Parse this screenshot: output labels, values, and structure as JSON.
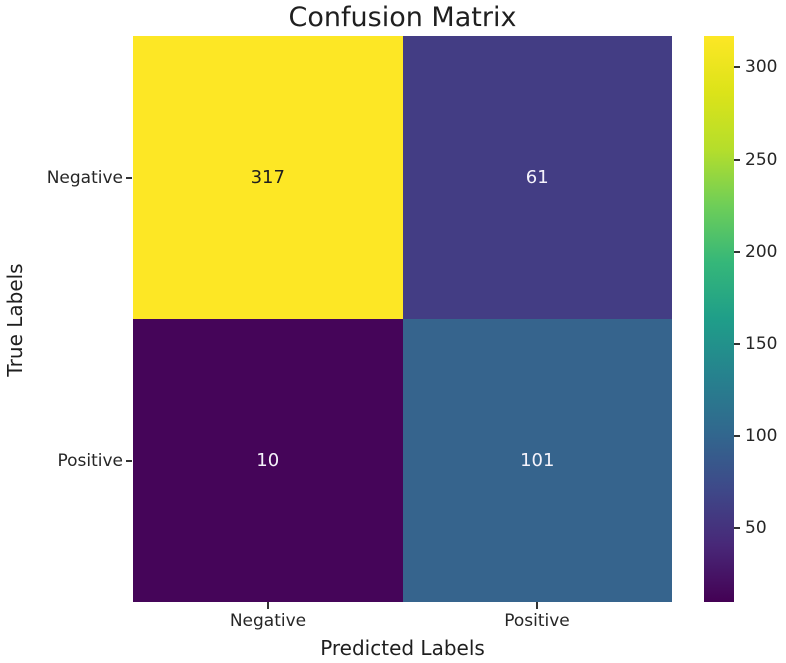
{
  "chart_data": {
    "type": "heatmap",
    "title": "Confusion Matrix",
    "xlabel": "Predicted Labels",
    "ylabel": "True Labels",
    "x_categories": [
      "Negative",
      "Positive"
    ],
    "y_categories": [
      "Negative",
      "Positive"
    ],
    "matrix": [
      [
        317,
        61
      ],
      [
        10,
        101
      ]
    ],
    "colormap": "viridis",
    "vmin": 10,
    "vmax": 317,
    "grid": false,
    "legend_position": "right-colorbar",
    "cells": [
      {
        "row": "Negative",
        "col": "Negative",
        "value": "317",
        "bg": "#fde725",
        "text_color": "#1f1f1f"
      },
      {
        "row": "Negative",
        "col": "Positive",
        "value": "61",
        "bg": "#433d84",
        "text_color": "#f5f3fb"
      },
      {
        "row": "Positive",
        "col": "Negative",
        "value": "10",
        "bg": "#450559",
        "text_color": "#f5f3fb"
      },
      {
        "row": "Positive",
        "col": "Positive",
        "value": "101",
        "bg": "#36648d",
        "text_color": "#f5f3fb"
      }
    ],
    "colorbar": {
      "tick_labels": [
        "300",
        "250",
        "200",
        "150",
        "100",
        "50"
      ],
      "gradient_css": "linear-gradient(to top, #440154 0%, #482878 10%, #3e4989 20%, #31688e 30%, #26828e 40%, #1f9e89 50%, #35b779 60%, #6ece58 70%, #b5de2b 80%, #dce319 90%, #fde725 100%)"
    },
    "colors": {
      "background": "#ffffff",
      "text": "#262626",
      "tick_mark": "#333333",
      "cmap_min": "#440154",
      "cmap_max": "#fde725"
    }
  }
}
